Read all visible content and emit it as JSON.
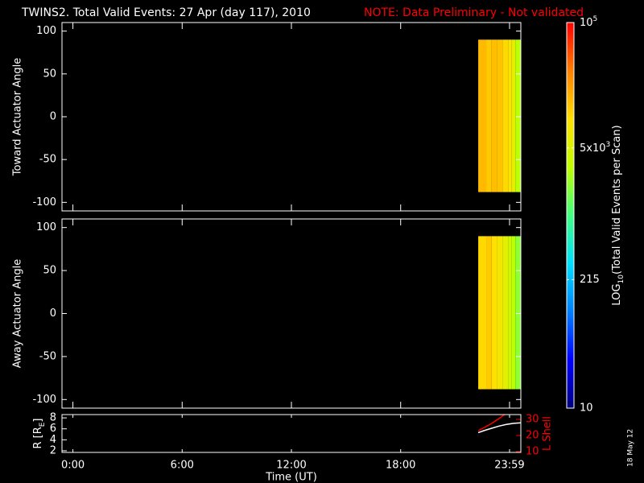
{
  "header": {
    "title": "TWINS2. Total Valid Events: 27 Apr (day 117), 2010",
    "note": "NOTE: Data Preliminary - Not validated"
  },
  "footer": {
    "stamp": "18 May 12"
  },
  "chart_data": [
    {
      "type": "heatmap",
      "ylabel": "Toward Actuator Angle",
      "ylim": [
        -110,
        110
      ],
      "yticks": [
        100,
        50,
        0,
        -50,
        -100
      ],
      "angle_range": [
        -88,
        90
      ],
      "time_bins": [
        22.26,
        22.7,
        23.0,
        23.3,
        23.6,
        23.9,
        24.1,
        24.3,
        24.6
      ],
      "values": [
        16000,
        13000,
        15000,
        14000,
        11000,
        9000,
        6000,
        3000
      ]
    },
    {
      "type": "heatmap",
      "ylabel": "Away Actuator Angle",
      "ylim": [
        -110,
        110
      ],
      "yticks": [
        100,
        50,
        0,
        -50,
        -100
      ],
      "angle_range": [
        -88,
        90
      ],
      "time_bins": [
        22.26,
        22.7,
        23.0,
        23.3,
        23.6,
        23.9,
        24.1,
        24.3,
        24.6
      ],
      "values": [
        11000,
        13000,
        10000,
        8000,
        6000,
        4000,
        3000,
        2000
      ]
    },
    {
      "type": "line",
      "xlabel": "Time (UT)",
      "ylabel": {
        "main": "R [R",
        "sub": "E",
        "rest": "]"
      },
      "y2label": "L Shell",
      "y2color": "#ff0000",
      "xlim": [
        -0.6,
        24.6
      ],
      "xticks": [
        {
          "value": 0,
          "label": "0:00"
        },
        {
          "value": 6,
          "label": "6:00"
        },
        {
          "value": 12,
          "label": "12:00"
        },
        {
          "value": 18,
          "label": "18:00"
        },
        {
          "value": 23.98,
          "label": "23:59"
        }
      ],
      "ylim": [
        1.7,
        8.6
      ],
      "yticks": [
        2,
        4,
        6,
        8
      ],
      "y2lim": [
        9.5,
        33
      ],
      "y2ticks": [
        10,
        20,
        30
      ],
      "series": [
        {
          "color": "#ffffff",
          "x": [
            22.26,
            22.6,
            23.0,
            23.4,
            23.8,
            24.2,
            24.6
          ],
          "values": [
            5.3,
            5.7,
            6.1,
            6.5,
            6.8,
            7.0,
            7.1
          ]
        },
        {
          "color": "#ff0000",
          "axis": "y2",
          "x": [
            22.26,
            22.6,
            23.0,
            23.4,
            23.7
          ],
          "values": [
            23,
            25,
            27.5,
            30.5,
            33
          ]
        }
      ]
    },
    {
      "type": "colorbar",
      "log": true,
      "lim": [
        10,
        100000
      ],
      "label": {
        "main": "LOG",
        "sub": "10",
        "rest": "(Total Valid Events per Scan)"
      },
      "ticks": [
        10,
        215,
        {
          "value": 5000,
          "label": "5x10",
          "sup": "3"
        },
        {
          "value": 100000,
          "label": "10",
          "sup": "5"
        }
      ],
      "colormap": [
        "#00007f",
        "#0000ff",
        "#0080ff",
        "#00e0ff",
        "#40ff80",
        "#c0ff00",
        "#ffe000",
        "#ff8000",
        "#ff0000"
      ]
    }
  ]
}
